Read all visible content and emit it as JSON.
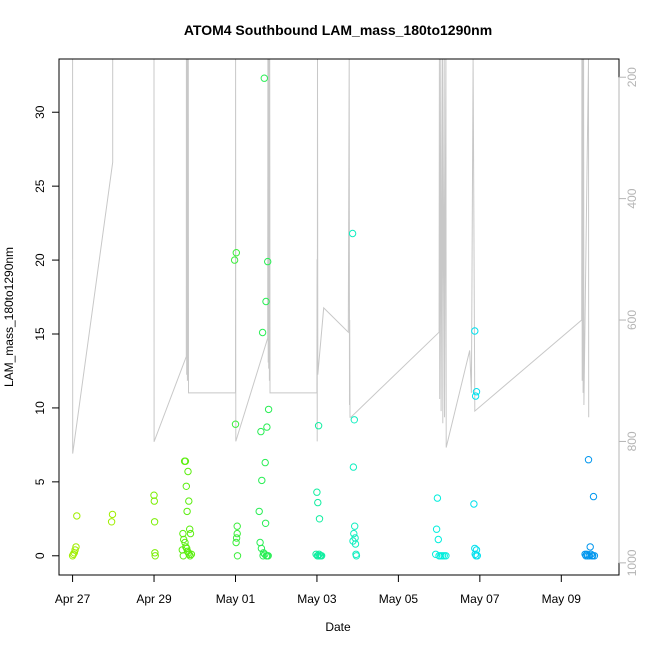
{
  "chart_data": {
    "type": "scatter",
    "title": "ATOM4 Southbound LAM_mass_180to1290nm",
    "xlabel": "Date",
    "ylabel": "LAM_mass_180to1290nm",
    "xlim": [
      "2021-04-26T16:00",
      "2021-05-10T10:00"
    ],
    "ylim": [
      -1.3,
      33.6
    ],
    "y2lim": [
      1020,
      170
    ],
    "x_ticks": [
      {
        "t": "2021-04-27T00:00",
        "label": "Apr 27"
      },
      {
        "t": "2021-04-29T00:00",
        "label": "Apr 29"
      },
      {
        "t": "2021-05-01T00:00",
        "label": "May 01"
      },
      {
        "t": "2021-05-03T00:00",
        "label": "May 03"
      },
      {
        "t": "2021-05-05T00:00",
        "label": "May 05"
      },
      {
        "t": "2021-05-07T00:00",
        "label": "May 07"
      },
      {
        "t": "2021-05-09T00:00",
        "label": "May 09"
      }
    ],
    "y_ticks": [
      0,
      5,
      10,
      15,
      20,
      25,
      30
    ],
    "y2_ticks": [
      200,
      400,
      600,
      800,
      1000
    ],
    "secondary_line_color": "#c8c8c8",
    "secondary_line": [
      [
        "2021-04-27T00:00",
        500
      ],
      [
        "2021-04-27T00:02",
        170
      ],
      [
        "2021-04-27T00:04",
        820
      ],
      [
        "2021-04-27T00:05",
        820
      ],
      [
        "2021-04-27T23:40",
        340
      ],
      [
        "2021-04-27T23:40",
        170
      ],
      [
        "2021-04-27T23:50",
        170
      ],
      [
        "2021-04-29T00:00",
        170
      ],
      [
        "2021-04-29T00:02",
        800
      ],
      [
        "2021-04-29T00:05",
        800
      ],
      [
        "2021-04-29T19:00",
        660
      ],
      [
        "2021-04-29T19:05",
        170
      ],
      [
        "2021-04-29T19:15",
        690
      ],
      [
        "2021-04-29T19:30",
        170
      ],
      [
        "2021-04-29T19:40",
        700
      ],
      [
        "2021-04-29T19:50",
        170
      ],
      [
        "2021-04-29T20:00",
        700
      ],
      [
        "2021-04-29T20:10",
        170
      ],
      [
        "2021-04-29T20:20",
        720
      ],
      [
        "2021-04-30T00:00",
        720
      ],
      [
        "2021-05-01T00:00",
        720
      ],
      [
        "2021-05-01T00:05",
        170
      ],
      [
        "2021-05-01T00:10",
        800
      ],
      [
        "2021-05-01T19:00",
        630
      ],
      [
        "2021-05-01T19:05",
        170
      ],
      [
        "2021-05-01T19:15",
        670
      ],
      [
        "2021-05-01T19:25",
        170
      ],
      [
        "2021-05-01T19:35",
        680
      ],
      [
        "2021-05-01T19:45",
        170
      ],
      [
        "2021-05-01T20:00",
        700
      ],
      [
        "2021-05-01T20:10",
        170
      ],
      [
        "2021-05-01T20:20",
        720
      ],
      [
        "2021-05-02T00:00",
        720
      ],
      [
        "2021-05-03T00:00",
        720
      ],
      [
        "2021-05-03T00:05",
        500
      ],
      [
        "2021-05-03T00:10",
        800
      ],
      [
        "2021-05-03T00:15",
        480
      ],
      [
        "2021-05-03T00:20",
        170
      ],
      [
        "2021-05-03T00:30",
        690
      ],
      [
        "2021-05-03T04:00",
        580
      ],
      [
        "2021-05-03T18:30",
        620
      ],
      [
        "2021-05-03T19:00",
        170
      ],
      [
        "2021-05-03T19:10",
        740
      ],
      [
        "2021-05-03T19:20",
        600
      ],
      [
        "2021-05-03T19:30",
        760
      ],
      [
        "2021-05-03T20:00",
        760
      ],
      [
        "2021-05-06T00:00",
        620
      ],
      [
        "2021-05-06T00:10",
        170
      ],
      [
        "2021-05-06T00:20",
        730
      ],
      [
        "2021-05-06T01:00",
        170
      ],
      [
        "2021-05-06T01:10",
        750
      ],
      [
        "2021-05-06T02:00",
        170
      ],
      [
        "2021-05-06T02:10",
        770
      ],
      [
        "2021-05-06T03:00",
        170
      ],
      [
        "2021-05-06T03:10",
        760
      ],
      [
        "2021-05-06T04:00",
        170
      ],
      [
        "2021-05-06T04:10",
        810
      ],
      [
        "2021-05-06T18:00",
        650
      ],
      [
        "2021-05-06T19:00",
        720
      ],
      [
        "2021-05-06T20:00",
        170
      ],
      [
        "2021-05-06T21:00",
        750
      ],
      [
        "2021-05-09T12:00",
        600
      ],
      [
        "2021-05-09T12:10",
        170
      ],
      [
        "2021-05-09T12:20",
        700
      ],
      [
        "2021-05-09T12:40",
        170
      ],
      [
        "2021-05-09T12:50",
        720
      ],
      [
        "2021-05-09T13:10",
        170
      ],
      [
        "2021-05-09T13:20",
        740
      ],
      [
        "2021-05-09T16:00",
        170
      ],
      [
        "2021-05-09T16:10",
        760
      ]
    ],
    "series": [
      {
        "color": "#a0ee00",
        "points": [
          [
            "2021-04-27T00:00",
            0.0
          ],
          [
            "2021-04-27T00:30",
            0.1
          ],
          [
            "2021-04-27T01:00",
            0.2
          ],
          [
            "2021-04-27T01:30",
            0.4
          ],
          [
            "2021-04-27T02:00",
            0.6
          ],
          [
            "2021-04-27T02:30",
            2.7
          ],
          [
            "2021-04-27T23:00",
            2.3
          ],
          [
            "2021-04-27T23:30",
            2.8
          ]
        ]
      },
      {
        "color": "#7aee00",
        "points": [
          [
            "2021-04-29T00:00",
            4.1
          ],
          [
            "2021-04-29T00:10",
            3.7
          ],
          [
            "2021-04-29T00:20",
            2.3
          ],
          [
            "2021-04-29T00:30",
            0.2
          ],
          [
            "2021-04-29T00:40",
            0.0
          ]
        ]
      },
      {
        "color": "#5cee10",
        "points": [
          [
            "2021-04-29T18:00",
            6.4
          ],
          [
            "2021-04-29T18:30",
            6.4
          ],
          [
            "2021-04-29T19:00",
            4.7
          ],
          [
            "2021-04-29T19:30",
            3.0
          ],
          [
            "2021-04-29T20:00",
            5.7
          ],
          [
            "2021-04-29T20:30",
            3.7
          ],
          [
            "2021-04-29T21:00",
            1.8
          ],
          [
            "2021-04-29T21:30",
            1.5
          ],
          [
            "2021-04-29T17:00",
            1.5
          ],
          [
            "2021-04-29T17:30",
            1.1
          ],
          [
            "2021-04-29T18:15",
            0.9
          ],
          [
            "2021-04-29T18:45",
            0.6
          ],
          [
            "2021-04-29T19:15",
            0.5
          ],
          [
            "2021-04-29T19:45",
            0.3
          ],
          [
            "2021-04-29T20:15",
            0.2
          ],
          [
            "2021-04-29T20:45",
            0.1
          ],
          [
            "2021-04-29T21:15",
            0.0
          ],
          [
            "2021-04-29T16:40",
            0.4
          ],
          [
            "2021-04-29T17:15",
            0.0
          ],
          [
            "2021-04-29T22:00",
            0.1
          ]
        ]
      },
      {
        "color": "#3cee3c",
        "points": [
          [
            "2021-04-30T23:30",
            20.0
          ],
          [
            "2021-05-01T00:30",
            20.5
          ],
          [
            "2021-05-01T00:00",
            8.9
          ],
          [
            "2021-05-01T01:00",
            2.0
          ],
          [
            "2021-05-01T01:00",
            1.5
          ],
          [
            "2021-05-01T00:40",
            1.2
          ],
          [
            "2021-05-01T00:20",
            0.9
          ],
          [
            "2021-05-01T01:10",
            0.0
          ]
        ]
      },
      {
        "color": "#2aee55",
        "points": [
          [
            "2021-05-01T17:00",
            32.3
          ],
          [
            "2021-05-01T19:00",
            19.9
          ],
          [
            "2021-05-01T18:00",
            17.2
          ],
          [
            "2021-05-01T16:00",
            15.1
          ],
          [
            "2021-05-01T19:30",
            9.9
          ],
          [
            "2021-05-01T18:30",
            8.7
          ],
          [
            "2021-05-01T15:00",
            8.4
          ],
          [
            "2021-05-01T17:30",
            6.3
          ],
          [
            "2021-05-01T15:30",
            5.1
          ],
          [
            "2021-05-01T14:00",
            3.0
          ],
          [
            "2021-05-01T17:45",
            2.2
          ],
          [
            "2021-05-01T14:30",
            0.9
          ],
          [
            "2021-05-01T15:15",
            0.5
          ],
          [
            "2021-05-01T16:30",
            0.2
          ],
          [
            "2021-05-01T17:15",
            0.1
          ],
          [
            "2021-05-01T18:15",
            0.0
          ],
          [
            "2021-05-01T19:15",
            0.0
          ],
          [
            "2021-05-01T16:15",
            0.0
          ],
          [
            "2021-05-01T18:45",
            0.0
          ]
        ]
      },
      {
        "color": "#10eea0",
        "points": [
          [
            "2021-05-03T00:00",
            4.3
          ],
          [
            "2021-05-03T01:00",
            8.8
          ],
          [
            "2021-05-03T00:30",
            3.6
          ],
          [
            "2021-05-03T01:30",
            2.5
          ],
          [
            "2021-05-02T23:30",
            0.1
          ],
          [
            "2021-05-03T00:15",
            0.0
          ],
          [
            "2021-05-03T00:45",
            0.0
          ],
          [
            "2021-05-03T01:15",
            0.1
          ],
          [
            "2021-05-03T01:45",
            0.0
          ],
          [
            "2021-05-03T02:15",
            0.0
          ],
          [
            "2021-05-03T02:45",
            0.0
          ]
        ]
      },
      {
        "color": "#10eec0",
        "points": [
          [
            "2021-05-03T21:00",
            21.8
          ],
          [
            "2021-05-03T22:00",
            9.2
          ],
          [
            "2021-05-03T21:30",
            6.0
          ],
          [
            "2021-05-03T22:15",
            2.0
          ],
          [
            "2021-05-03T21:45",
            1.5
          ],
          [
            "2021-05-03T22:30",
            1.2
          ],
          [
            "2021-05-03T21:15",
            1.0
          ],
          [
            "2021-05-03T22:45",
            0.8
          ],
          [
            "2021-05-03T23:00",
            0.1
          ],
          [
            "2021-05-03T23:15",
            0.0
          ]
        ]
      },
      {
        "color": "#00eedd",
        "points": [
          [
            "2021-05-05T23:00",
            3.9
          ],
          [
            "2021-05-05T22:30",
            1.8
          ],
          [
            "2021-05-05T23:30",
            1.1
          ],
          [
            "2021-05-05T22:00",
            0.1
          ],
          [
            "2021-05-06T00:00",
            0.0
          ],
          [
            "2021-05-06T01:00",
            0.0
          ],
          [
            "2021-05-06T02:00",
            0.0
          ],
          [
            "2021-05-06T03:00",
            0.0
          ],
          [
            "2021-05-06T04:00",
            0.0
          ]
        ]
      },
      {
        "color": "#00e0ee",
        "points": [
          [
            "2021-05-06T21:00",
            15.2
          ],
          [
            "2021-05-06T22:00",
            11.1
          ],
          [
            "2021-05-06T21:30",
            10.8
          ],
          [
            "2021-05-06T20:30",
            3.5
          ],
          [
            "2021-05-06T21:00",
            0.5
          ],
          [
            "2021-05-06T22:00",
            0.4
          ],
          [
            "2021-05-06T21:15",
            0.1
          ],
          [
            "2021-05-06T21:45",
            0.0
          ],
          [
            "2021-05-06T22:30",
            0.0
          ]
        ]
      },
      {
        "color": "#0096ee",
        "points": [
          [
            "2021-05-09T16:00",
            6.5
          ],
          [
            "2021-05-09T19:00",
            4.0
          ],
          [
            "2021-05-09T17:00",
            0.6
          ],
          [
            "2021-05-09T14:00",
            0.1
          ],
          [
            "2021-05-09T14:30",
            0.0
          ],
          [
            "2021-05-09T15:00",
            0.1
          ],
          [
            "2021-05-09T15:30",
            0.0
          ],
          [
            "2021-05-09T16:30",
            0.0
          ],
          [
            "2021-05-09T17:30",
            0.1
          ],
          [
            "2021-05-09T18:00",
            0.0
          ],
          [
            "2021-05-09T18:30",
            0.0
          ],
          [
            "2021-05-09T19:30",
            0.0
          ]
        ]
      }
    ]
  }
}
